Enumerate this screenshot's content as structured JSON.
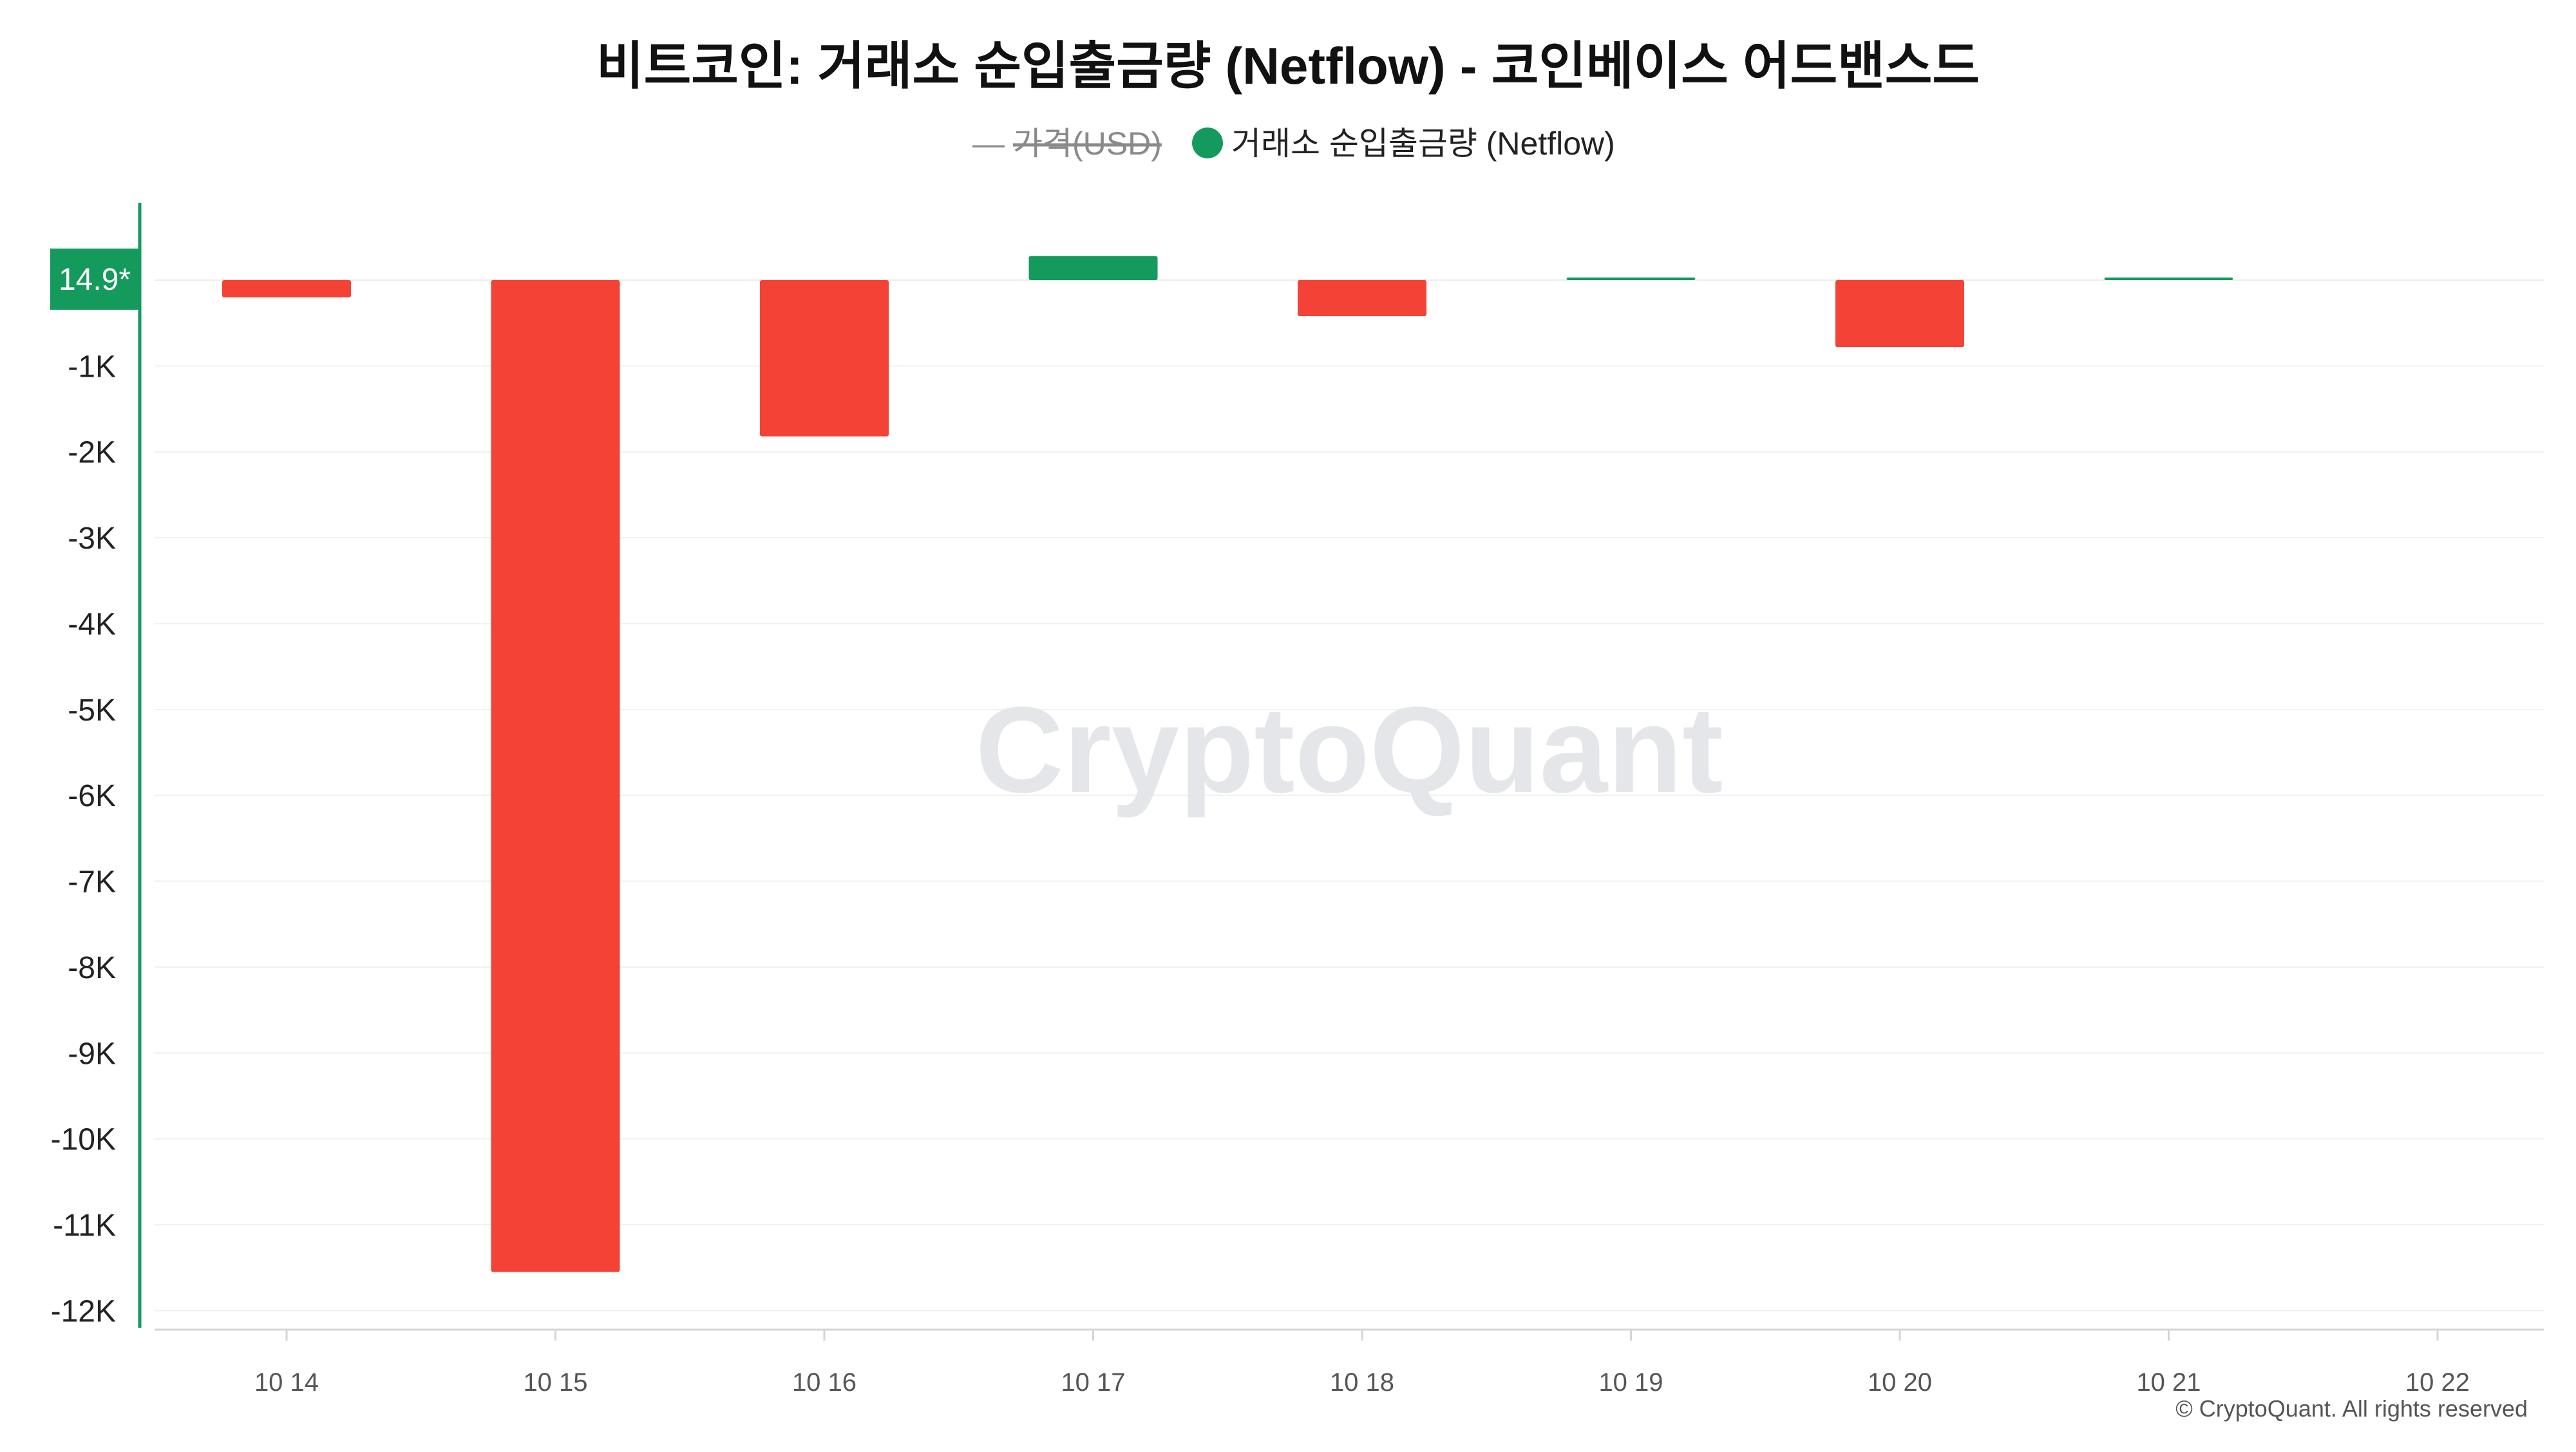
{
  "chart_data": {
    "type": "bar",
    "title": "비트코인: 거래소 순입출금량 (Netflow) - 코인베이스 어드밴스드",
    "legend": [
      {
        "label": "가격(USD)",
        "symbol": "—",
        "color": "#8a8a8a",
        "state": "hidden"
      },
      {
        "label": "거래소 순입출금량 (Netflow)",
        "color": "#139a5c",
        "state": "visible"
      }
    ],
    "legend_position": "top-center",
    "categories": [
      "10 14",
      "10 15",
      "10 16",
      "10 17",
      "10 18",
      "10 19",
      "10 20",
      "10 21",
      "10 22"
    ],
    "series": [
      {
        "name": "거래소 순입출금량 (Netflow)",
        "values": [
          -200,
          -11550,
          -1820,
          280,
          -420,
          25,
          -780,
          10,
          null
        ]
      }
    ],
    "y_ticks": [
      -12000,
      -11000,
      -10000,
      -9000,
      -8000,
      -7000,
      -6000,
      -5000,
      -4000,
      -3000,
      -2000,
      -1000
    ],
    "y_tick_labels": [
      "-12K",
      "-11K",
      "-10K",
      "-9K",
      "-8K",
      "-7K",
      "-6K",
      "-5K",
      "-4K",
      "-3K",
      "-2K",
      "-1K"
    ],
    "ylim": [
      -12200,
      900
    ],
    "current_value_label": "14.9*",
    "current_value": 14.9,
    "grid": true,
    "colors": {
      "positive": "#139a5c",
      "negative": "#f44336",
      "axis": "#139a5c"
    },
    "watermark": "CryptoQuant",
    "footer": "© CryptoQuant. All rights reserved"
  }
}
